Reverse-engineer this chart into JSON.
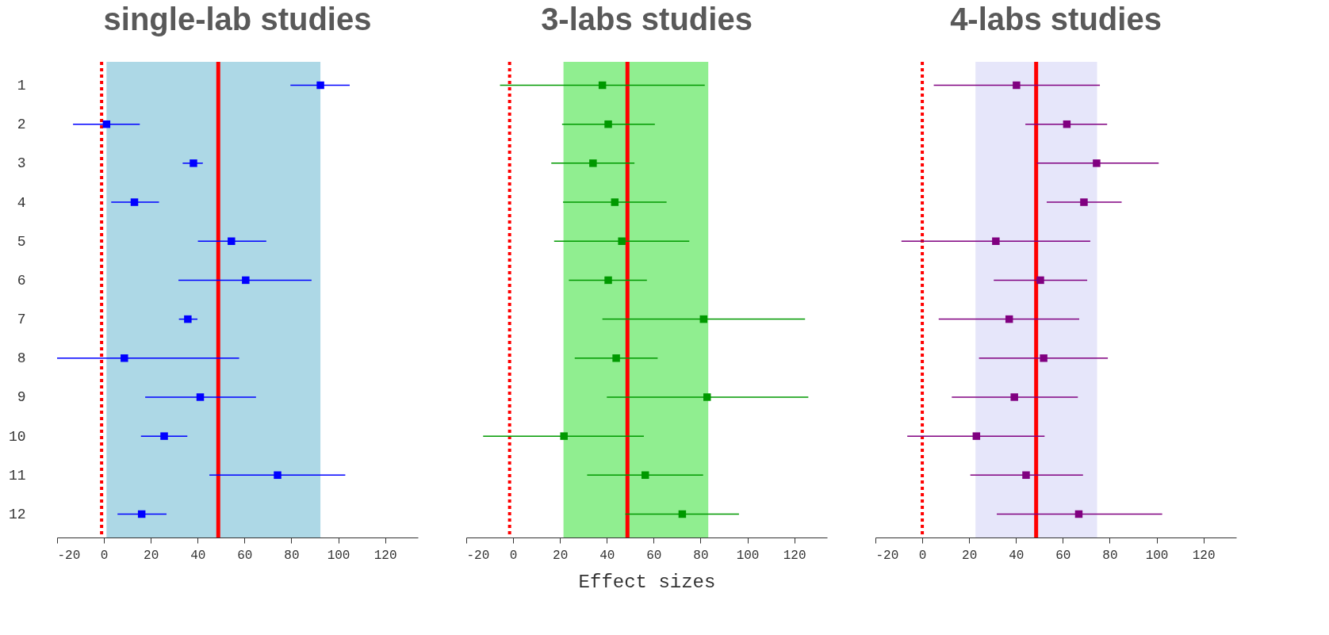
{
  "chart_data": [
    {
      "type": "scatter",
      "title": "single-lab studies",
      "orientation": "horizontal",
      "marker": "square",
      "categories": [
        "1",
        "2",
        "3",
        "4",
        "5",
        "6",
        "7",
        "8",
        "9",
        "10",
        "11",
        "12"
      ],
      "series": [
        {
          "color": "#0000ff",
          "values": [
            92.4,
            1.1,
            38.2,
            13.0,
            54.4,
            60.5,
            35.8,
            8.7,
            41.1,
            25.7,
            74.1,
            16.1
          ],
          "errors": [
            [
              79.6,
              104.9
            ],
            [
              -13.2,
              15.3
            ],
            [
              33.6,
              42.2
            ],
            [
              3.1,
              23.5
            ],
            [
              40.1,
              69.3
            ],
            [
              31.8,
              88.6
            ],
            [
              32.0,
              39.9
            ],
            [
              -20,
              57.7
            ],
            [
              17.6,
              64.9
            ],
            [
              15.8,
              35.6
            ],
            [
              45.0,
              103.0
            ],
            [
              5.8,
              26.7
            ]
          ]
        }
      ],
      "xlim": [
        -20,
        134
      ],
      "xticks": [
        -20,
        0,
        20,
        40,
        60,
        80,
        100,
        120
      ],
      "bands": [
        {
          "axis": "x",
          "from": 1.1,
          "to": 92.4,
          "color": "#add8e6"
        }
      ],
      "ref_lines": [
        {
          "axis": "x",
          "value": -1,
          "color": "#ff0000",
          "line_style": "dotted"
        },
        {
          "axis": "x",
          "value": 48.8,
          "color": "#ff0000",
          "line_style": "solid"
        }
      ]
    },
    {
      "type": "scatter",
      "title": "3-labs studies",
      "xlabel": "Effect sizes",
      "orientation": "horizontal",
      "marker": "square",
      "tick_labels": "x",
      "categories": [
        "1",
        "2",
        "3",
        "4",
        "5",
        "6",
        "7",
        "8",
        "9",
        "10",
        "11",
        "12"
      ],
      "series": [
        {
          "color": "#009900",
          "values": [
            38.1,
            40.6,
            34.1,
            43.4,
            46.4,
            40.6,
            81.3,
            44.0,
            82.8,
            21.7,
            56.4,
            72.2
          ],
          "errors": [
            [
              -5.6,
              81.8
            ],
            [
              20.9,
              60.5
            ],
            [
              16.3,
              51.8
            ],
            [
              21.3,
              65.5
            ],
            [
              17.5,
              75.2
            ],
            [
              23.8,
              57.1
            ],
            [
              38.1,
              124.6
            ],
            [
              26.3,
              61.7
            ],
            [
              40.0,
              126.0
            ],
            [
              -12.8,
              55.8
            ],
            [
              31.6,
              81.1
            ],
            [
              47.9,
              96.4
            ]
          ]
        }
      ],
      "xlim": [
        -20,
        134
      ],
      "xticks": [
        -20,
        0,
        20,
        40,
        60,
        80,
        100,
        120
      ],
      "bands": [
        {
          "axis": "x",
          "from": 21.5,
          "to": 83.3,
          "color": "#90ee90"
        }
      ],
      "ref_lines": [
        {
          "axis": "x",
          "value": -1.5,
          "color": "#ff0000",
          "line_style": "dotted"
        },
        {
          "axis": "x",
          "value": 48.8,
          "color": "#ff0000",
          "line_style": "solid"
        }
      ]
    },
    {
      "type": "scatter",
      "title": "4-labs studies",
      "orientation": "horizontal",
      "marker": "square",
      "tick_labels": "x",
      "categories": [
        "1",
        "2",
        "3",
        "4",
        "5",
        "6",
        "7",
        "8",
        "9",
        "10",
        "11",
        "12"
      ],
      "series": [
        {
          "color": "#800080",
          "values": [
            40.2,
            61.7,
            74.4,
            69.0,
            31.4,
            50.4,
            37.1,
            51.8,
            39.3,
            23.1,
            44.3,
            66.8
          ],
          "errors": [
            [
              4.9,
              75.8
            ],
            [
              44.0,
              78.9
            ],
            [
              48.9,
              100.9
            ],
            [
              53.1,
              85.1
            ],
            [
              -8.9,
              71.7
            ],
            [
              30.5,
              70.4
            ],
            [
              7.0,
              67.0
            ],
            [
              24.2,
              79.2
            ],
            [
              12.6,
              66.4
            ],
            [
              -6.4,
              52.2
            ],
            [
              20.5,
              68.6
            ],
            [
              31.8,
              102.4
            ]
          ]
        }
      ],
      "xlim": [
        -20,
        134
      ],
      "xticks": [
        -20,
        0,
        20,
        40,
        60,
        80,
        100,
        120
      ],
      "bands": [
        {
          "axis": "x",
          "from": 22.7,
          "to": 74.6,
          "color": "#e6e6fa"
        }
      ],
      "ref_lines": [
        {
          "axis": "x",
          "value": 0,
          "color": "#ff0000",
          "line_style": "dotted"
        },
        {
          "axis": "x",
          "value": 48.6,
          "color": "#ff0000",
          "line_style": "solid"
        }
      ]
    }
  ]
}
